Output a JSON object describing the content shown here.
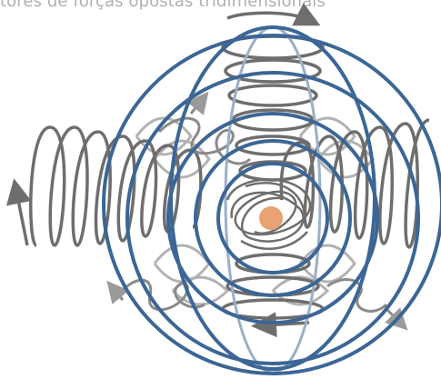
{
  "caption": "tores de forças opostas tridimensionais",
  "colors": {
    "ring": "#3b6696",
    "ring_light": "#9ab0c8",
    "spiral": "#6e6e6e",
    "spiral_light": "#b2b2b2",
    "core": "#e8a273"
  },
  "icons": [
    "arrow-left-icon",
    "arrow-right-icon",
    "arrow-up-icon",
    "arrow-down-icon"
  ]
}
